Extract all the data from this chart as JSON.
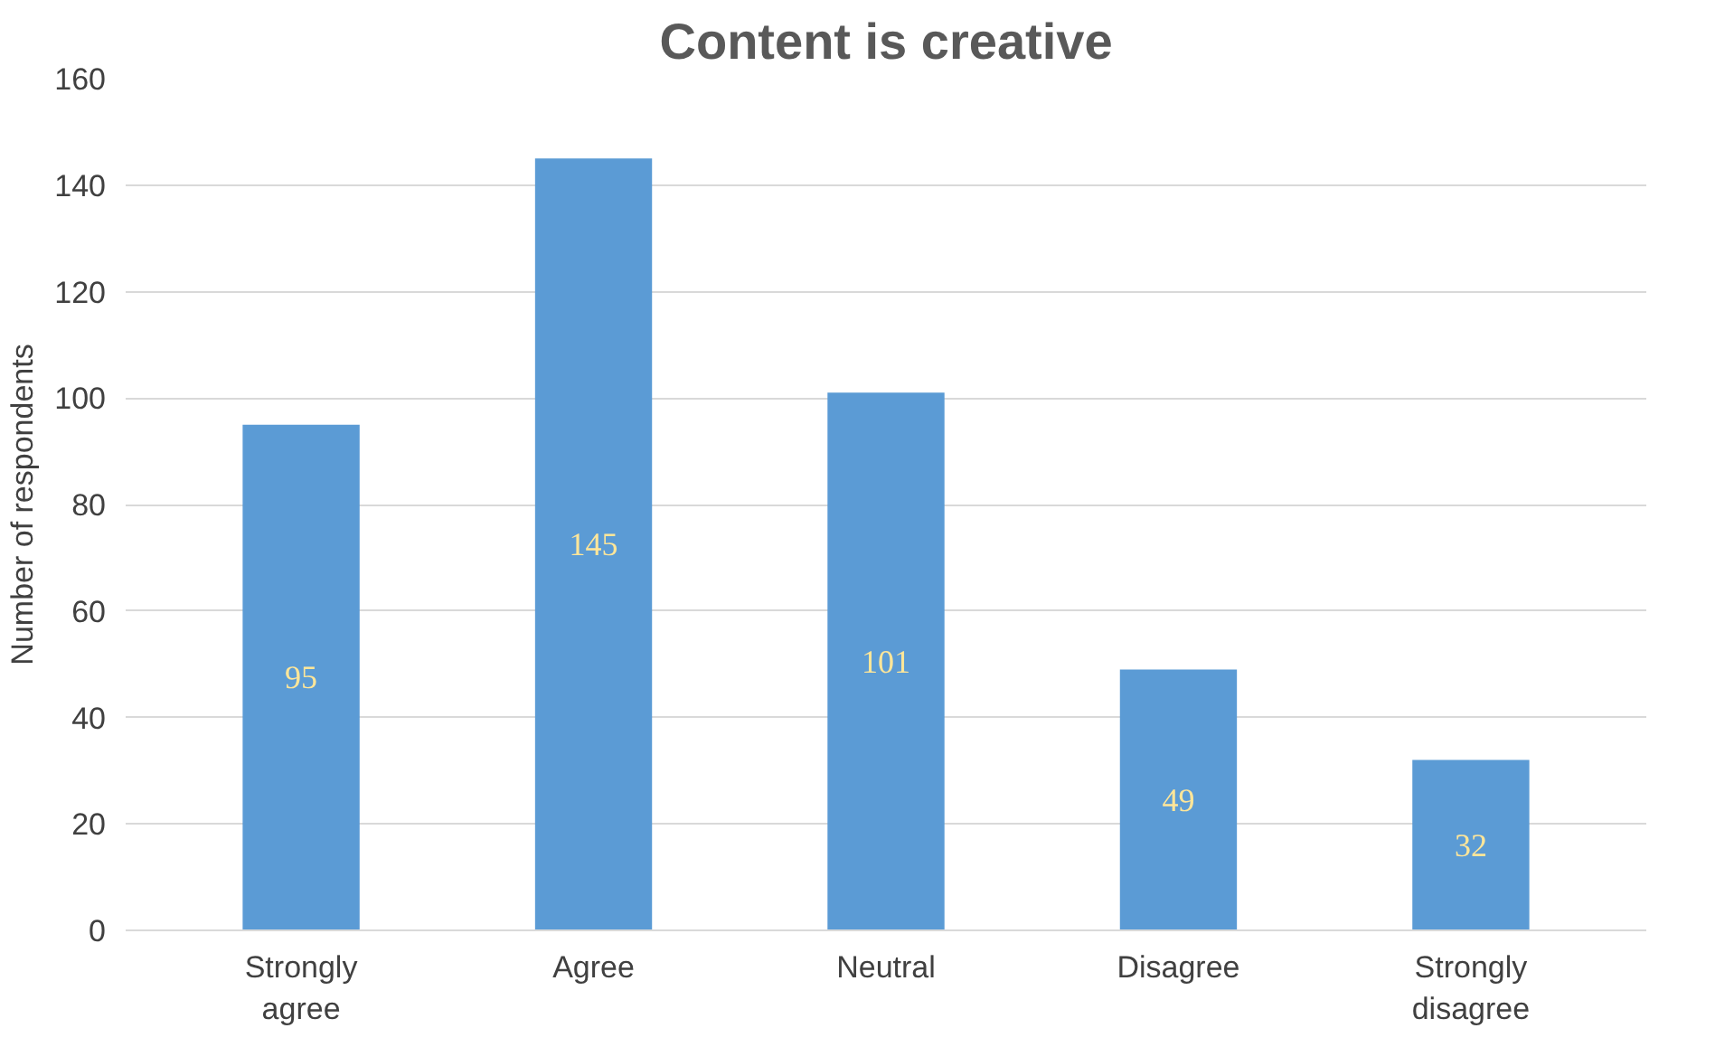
{
  "chart_data": {
    "type": "bar",
    "title": "Content is creative",
    "ylabel": "Number of respondents",
    "categories": [
      "Strongly agree",
      "Agree",
      "Neutral",
      "Disagree",
      "Strongly disagree"
    ],
    "values": [
      95,
      145,
      101,
      49,
      32
    ],
    "color": "#5b9bd5",
    "ylim": [
      0,
      160
    ],
    "yticks": [
      0,
      20,
      40,
      60,
      80,
      100,
      120,
      140,
      160
    ],
    "grid": "y",
    "data_labels": true
  }
}
